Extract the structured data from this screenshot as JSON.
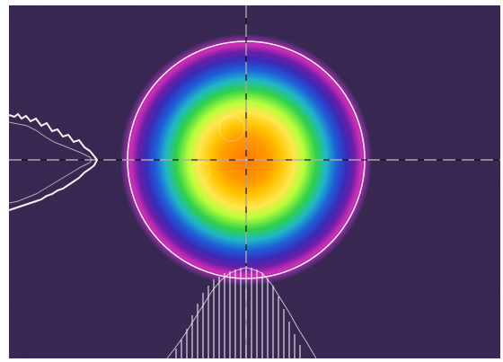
{
  "app": {
    "title": ""
  },
  "beam_profile": {
    "crosshair": {
      "x_style": "dashed",
      "y_style": "dashed"
    },
    "aperture_circle": {
      "color": "#ffffff"
    },
    "colors": {
      "background": "#3b2a55",
      "false_color_scale": [
        "#ff7a00",
        "#ffb300",
        "#ffe64d",
        "#c6ff39",
        "#56d83c",
        "#1fb7c8",
        "#1e5ed8",
        "#6a1fa6",
        "#d22db8",
        "#3b2a55"
      ],
      "trace": "#ffffff",
      "crosshair": "#111111"
    },
    "icons": {
      "crosshair": "crosshair-icon",
      "profile_x": "x-profile-icon",
      "profile_y": "y-profile-icon"
    }
  }
}
